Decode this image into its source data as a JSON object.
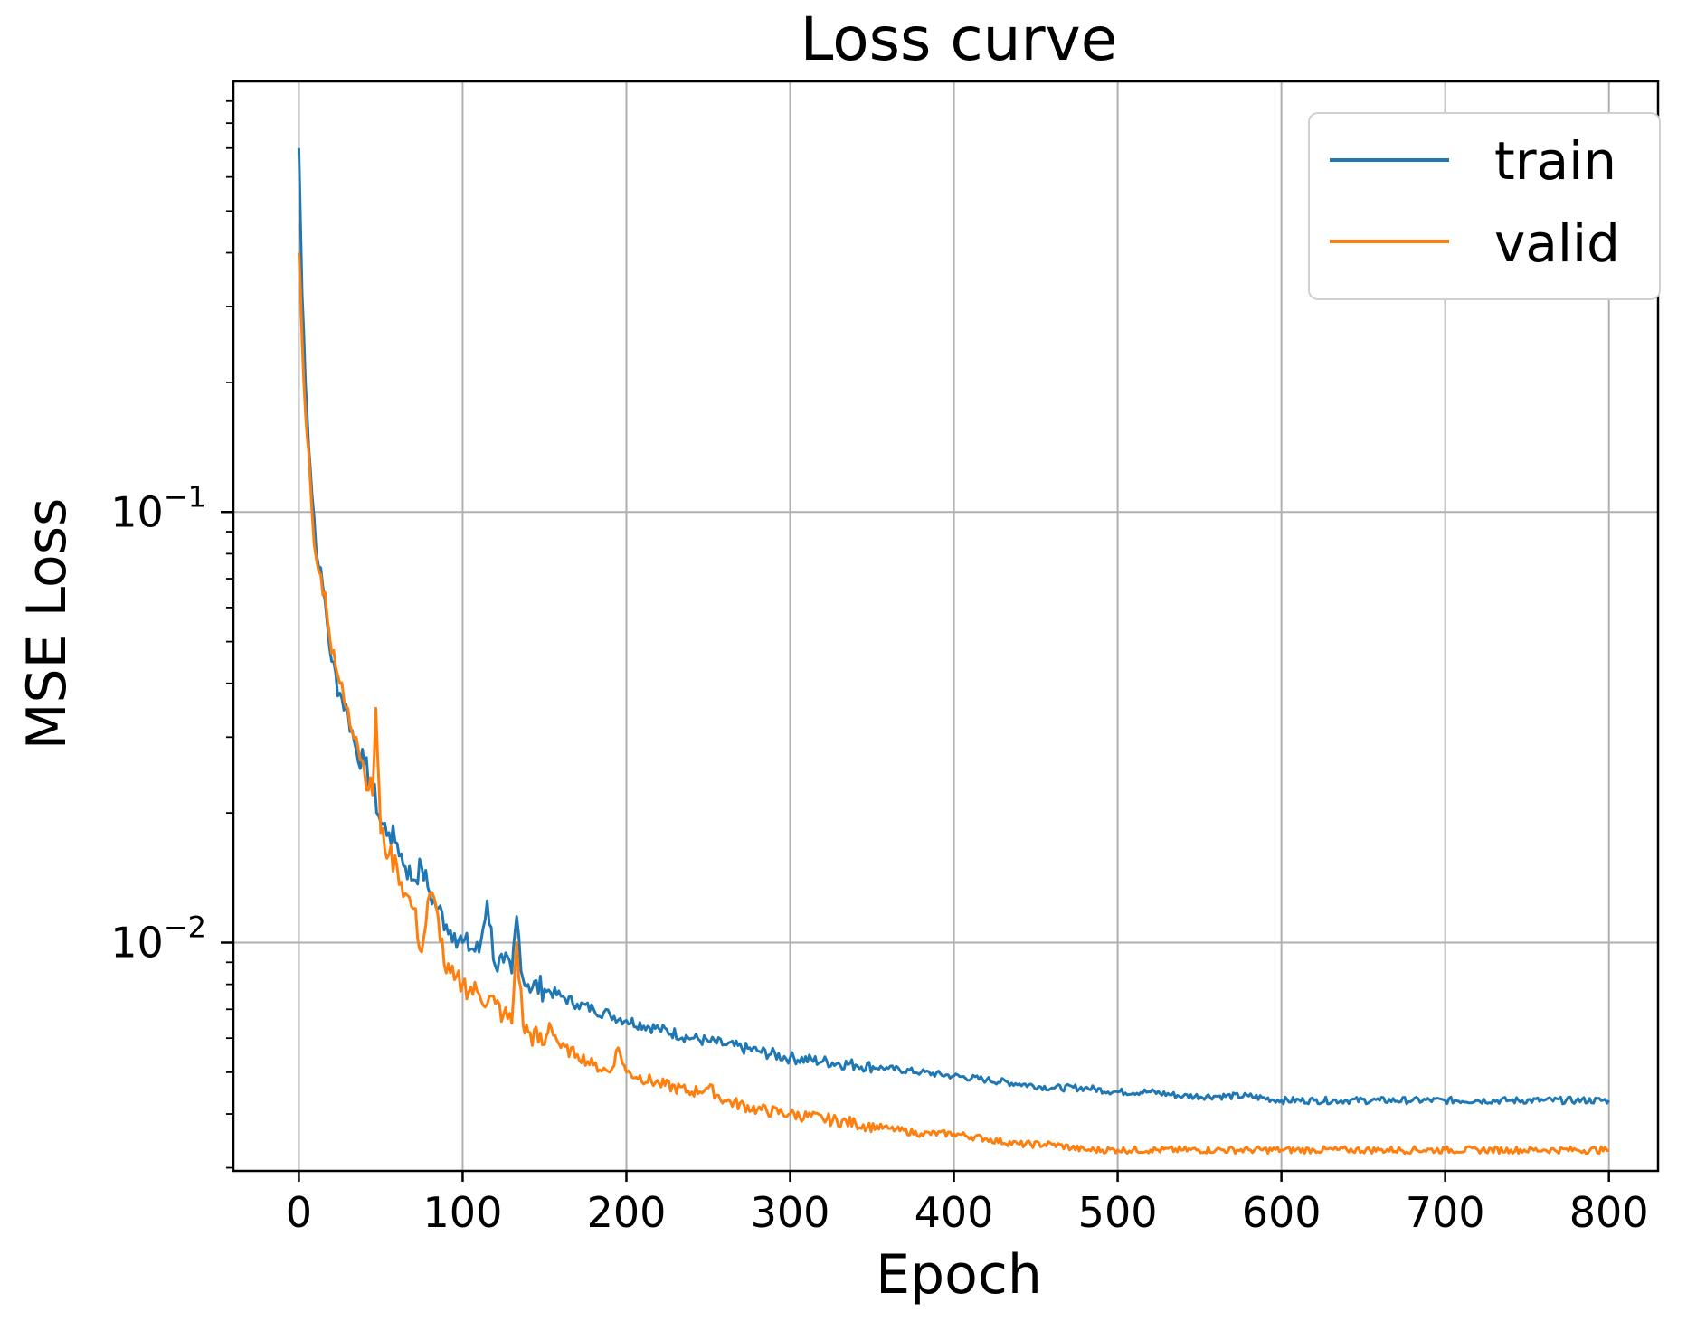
{
  "chart_data": {
    "type": "line",
    "title": "Loss curve",
    "xlabel": "Epoch",
    "ylabel": "MSE Loss",
    "yscale": "log",
    "xlim": [
      -40,
      830
    ],
    "ylim": [
      0.00295,
      1.0
    ],
    "xticks": [
      0,
      100,
      200,
      300,
      400,
      500,
      600,
      700,
      800
    ],
    "yticks": [
      {
        "value": 0.1,
        "base": "10",
        "exp": "−1"
      },
      {
        "value": 0.01,
        "base": "10",
        "exp": "−2"
      }
    ],
    "grid": true,
    "legend_position": "top-right",
    "series": [
      {
        "name": "train",
        "color": "#1f77b4",
        "x": [
          0,
          2,
          5,
          8,
          12,
          16,
          20,
          25,
          30,
          35,
          40,
          45,
          50,
          55,
          60,
          65,
          70,
          75,
          80,
          85,
          90,
          95,
          100,
          110,
          115,
          120,
          125,
          130,
          133,
          137,
          140,
          150,
          160,
          170,
          180,
          190,
          200,
          220,
          240,
          250,
          260,
          280,
          300,
          320,
          340,
          360,
          380,
          400,
          420,
          440,
          460,
          480,
          500,
          520,
          540,
          560,
          580,
          600,
          620,
          640,
          660,
          680,
          700,
          720,
          740,
          760,
          780,
          800
        ],
        "y": [
          0.7,
          0.32,
          0.17,
          0.11,
          0.075,
          0.062,
          0.045,
          0.038,
          0.034,
          0.028,
          0.026,
          0.023,
          0.019,
          0.018,
          0.017,
          0.015,
          0.014,
          0.015,
          0.013,
          0.012,
          0.011,
          0.0105,
          0.01,
          0.0095,
          0.0125,
          0.0088,
          0.009,
          0.0085,
          0.0115,
          0.0082,
          0.008,
          0.0078,
          0.0075,
          0.0072,
          0.007,
          0.0068,
          0.0066,
          0.0063,
          0.006,
          0.0059,
          0.0058,
          0.0056,
          0.0054,
          0.0053,
          0.0052,
          0.0051,
          0.005,
          0.0049,
          0.0048,
          0.0047,
          0.0046,
          0.0046,
          0.0045,
          0.0045,
          0.0044,
          0.0044,
          0.0044,
          0.0043,
          0.0043,
          0.0043,
          0.0043,
          0.0043,
          0.0043,
          0.0043,
          0.0043,
          0.0043,
          0.0043,
          0.0043
        ]
      },
      {
        "name": "valid",
        "color": "#ff7f0e",
        "x": [
          0,
          2,
          5,
          8,
          12,
          16,
          20,
          25,
          30,
          35,
          40,
          45,
          47,
          50,
          55,
          60,
          65,
          70,
          75,
          80,
          85,
          90,
          95,
          100,
          110,
          120,
          125,
          130,
          133,
          137,
          140,
          150,
          153,
          160,
          170,
          180,
          190,
          195,
          200,
          220,
          240,
          250,
          260,
          280,
          300,
          320,
          340,
          360,
          380,
          400,
          420,
          440,
          460,
          480,
          500,
          520,
          540,
          560,
          580,
          600,
          620,
          640,
          660,
          680,
          700,
          720,
          740,
          760,
          780,
          800
        ],
        "y": [
          0.4,
          0.25,
          0.15,
          0.1,
          0.073,
          0.065,
          0.047,
          0.04,
          0.035,
          0.03,
          0.025,
          0.022,
          0.035,
          0.018,
          0.016,
          0.015,
          0.013,
          0.012,
          0.0095,
          0.013,
          0.0115,
          0.0085,
          0.0082,
          0.008,
          0.0076,
          0.0072,
          0.0068,
          0.0065,
          0.01,
          0.0064,
          0.0062,
          0.0058,
          0.0065,
          0.0057,
          0.0055,
          0.0052,
          0.005,
          0.0057,
          0.005,
          0.0047,
          0.0045,
          0.0046,
          0.0043,
          0.0041,
          0.004,
          0.0039,
          0.0038,
          0.0037,
          0.0036,
          0.0036,
          0.0035,
          0.0034,
          0.0034,
          0.0033,
          0.0033,
          0.0033,
          0.0033,
          0.0033,
          0.0033,
          0.0033,
          0.0033,
          0.0033,
          0.0033,
          0.0033,
          0.0033,
          0.0033,
          0.0033,
          0.0033,
          0.0033,
          0.0033
        ]
      }
    ]
  }
}
